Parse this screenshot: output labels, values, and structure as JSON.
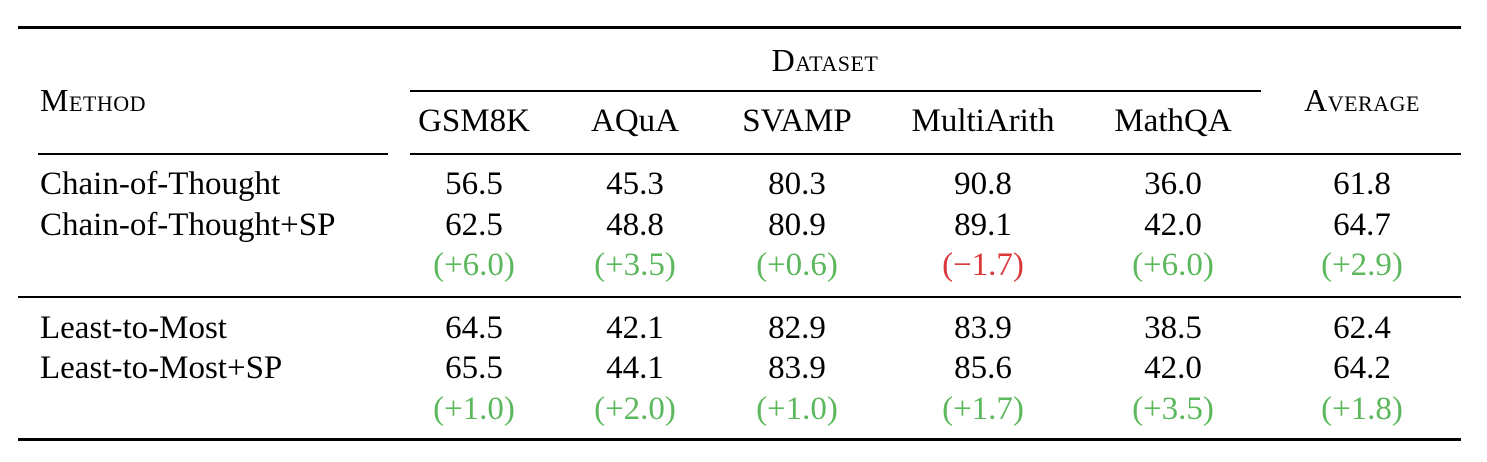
{
  "table": {
    "header": {
      "method": "Method",
      "dataset": "Dataset",
      "average": "Average",
      "columns": [
        "GSM8K",
        "AQuA",
        "SVAMP",
        "MultiArith",
        "MathQA"
      ]
    },
    "groups": [
      {
        "rows": [
          {
            "method": "Chain-of-Thought",
            "values": [
              "56.5",
              "45.3",
              "80.3",
              "90.8",
              "36.0"
            ],
            "average": "61.8"
          },
          {
            "method": "Chain-of-Thought+SP",
            "values": [
              "62.5",
              "48.8",
              "80.9",
              "89.1",
              "42.0"
            ],
            "average": "64.7"
          }
        ],
        "deltas": [
          "(+6.0)",
          "(+3.5)",
          "(+0.6)",
          "(−1.7)",
          "(+6.0)"
        ],
        "delta_signs": [
          "pos",
          "pos",
          "pos",
          "neg",
          "pos"
        ],
        "delta_average": "(+2.9)"
      },
      {
        "rows": [
          {
            "method": "Least-to-Most",
            "values": [
              "64.5",
              "42.1",
              "82.9",
              "83.9",
              "38.5"
            ],
            "average": "62.4"
          },
          {
            "method": "Least-to-Most+SP",
            "values": [
              "65.5",
              "44.1",
              "83.9",
              "85.6",
              "42.0"
            ],
            "average": "64.2"
          }
        ],
        "deltas": [
          "(+1.0)",
          "(+2.0)",
          "(+1.0)",
          "(+1.7)",
          "(+3.5)"
        ],
        "delta_signs": [
          "pos",
          "pos",
          "pos",
          "pos",
          "pos"
        ],
        "delta_average": "(+1.8)"
      }
    ]
  },
  "colors": {
    "positive": "#5cb85c",
    "negative": "#d9383a",
    "text": "#000000"
  }
}
